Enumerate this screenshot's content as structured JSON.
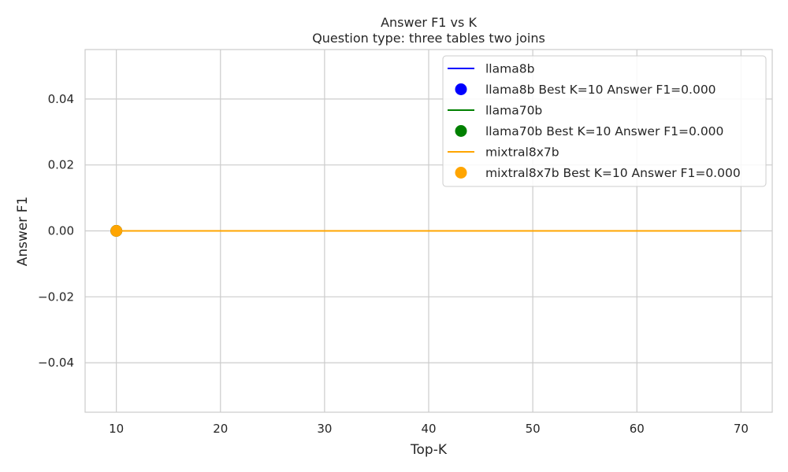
{
  "chart_data": {
    "type": "line",
    "title": "Answer F1 vs K",
    "subtitle": "Question type: three tables two joins",
    "xlabel": "Top-K",
    "ylabel": "Answer F1",
    "xlim": [
      7,
      73
    ],
    "ylim": [
      -0.055,
      0.055
    ],
    "x_ticks": [
      10,
      20,
      30,
      40,
      50,
      60,
      70
    ],
    "x_tick_labels": [
      "10",
      "20",
      "30",
      "40",
      "50",
      "60",
      "70"
    ],
    "y_ticks": [
      -0.04,
      -0.02,
      0.0,
      0.02,
      0.04
    ],
    "y_tick_labels": [
      "−0.04",
      "−0.02",
      "0.00",
      "0.02",
      "0.04"
    ],
    "grid": true,
    "legend_position": "top-right",
    "series": [
      {
        "name": "llama8b",
        "color": "#0000ff",
        "x": [
          10,
          70
        ],
        "y": [
          0.0,
          0.0
        ],
        "best_label": "llama8b Best K=10 Answer F1=0.000",
        "best": {
          "x": 10,
          "y": 0.0
        }
      },
      {
        "name": "llama70b",
        "color": "#008000",
        "x": [
          10,
          70
        ],
        "y": [
          0.0,
          0.0
        ],
        "best_label": "llama70b Best K=10 Answer F1=0.000",
        "best": {
          "x": 10,
          "y": 0.0
        }
      },
      {
        "name": "mixtral8x7b",
        "color": "#ffa500",
        "x": [
          10,
          70
        ],
        "y": [
          0.0,
          0.0
        ],
        "best_label": "mixtral8x7b Best K=10 Answer F1=0.000",
        "best": {
          "x": 10,
          "y": 0.0
        }
      }
    ]
  }
}
